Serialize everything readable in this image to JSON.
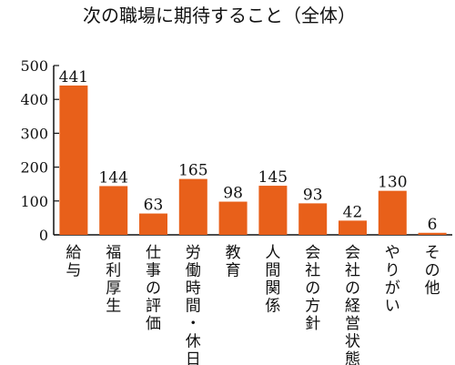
{
  "chart_data": {
    "type": "bar",
    "title": "次の職場に期待すること（全体）",
    "categories": [
      "給与",
      "福利厚生",
      "仕事の評価",
      "労働時間・休日",
      "教育",
      "人間関係",
      "会社の方針",
      "会社の経営状態",
      "やりがい",
      "その他"
    ],
    "values": [
      441,
      144,
      63,
      165,
      98,
      145,
      93,
      42,
      130,
      6
    ],
    "ylim": [
      0,
      500
    ],
    "yticks": [
      0,
      100,
      200,
      300,
      400,
      500
    ],
    "xlabel": "",
    "ylabel": "",
    "grid": false,
    "bar_color": "#e8601a",
    "axis_color": "#111111"
  }
}
